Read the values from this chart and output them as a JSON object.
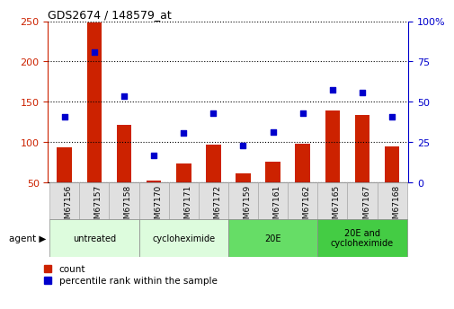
{
  "title": "GDS2674 / 148579_at",
  "samples": [
    "GSM67156",
    "GSM67157",
    "GSM67158",
    "GSM67170",
    "GSM67171",
    "GSM67172",
    "GSM67159",
    "GSM67161",
    "GSM67162",
    "GSM67165",
    "GSM67167",
    "GSM67168"
  ],
  "counts": [
    93,
    248,
    121,
    52,
    73,
    97,
    61,
    75,
    98,
    139,
    133,
    94
  ],
  "percentiles": [
    131,
    211,
    157,
    83,
    111,
    136,
    96,
    112,
    136,
    165,
    161,
    131
  ],
  "bar_color": "#cc2200",
  "dot_color": "#0000cc",
  "ylim_left": [
    50,
    250
  ],
  "left_ticks": [
    50,
    100,
    150,
    200,
    250
  ],
  "right_ticks": [
    0,
    25,
    50,
    75,
    100
  ],
  "right_tick_labels": [
    "0",
    "25",
    "50",
    "75",
    "100%"
  ],
  "groups": [
    {
      "label": "untreated",
      "start": 0,
      "end": 3,
      "color": "#ddfcdd"
    },
    {
      "label": "cycloheximide",
      "start": 3,
      "end": 6,
      "color": "#ddfcdd"
    },
    {
      "label": "20E",
      "start": 6,
      "end": 9,
      "color": "#66dd66"
    },
    {
      "label": "20E and\ncycloheximide",
      "start": 9,
      "end": 12,
      "color": "#44cc44"
    }
  ],
  "agent_label": "agent ▶",
  "legend_count_label": "count",
  "legend_pct_label": "percentile rank within the sample",
  "bar_bottom": 50,
  "bar_width": 0.5,
  "dot_size": 20,
  "xlim": [
    -0.55,
    11.55
  ]
}
